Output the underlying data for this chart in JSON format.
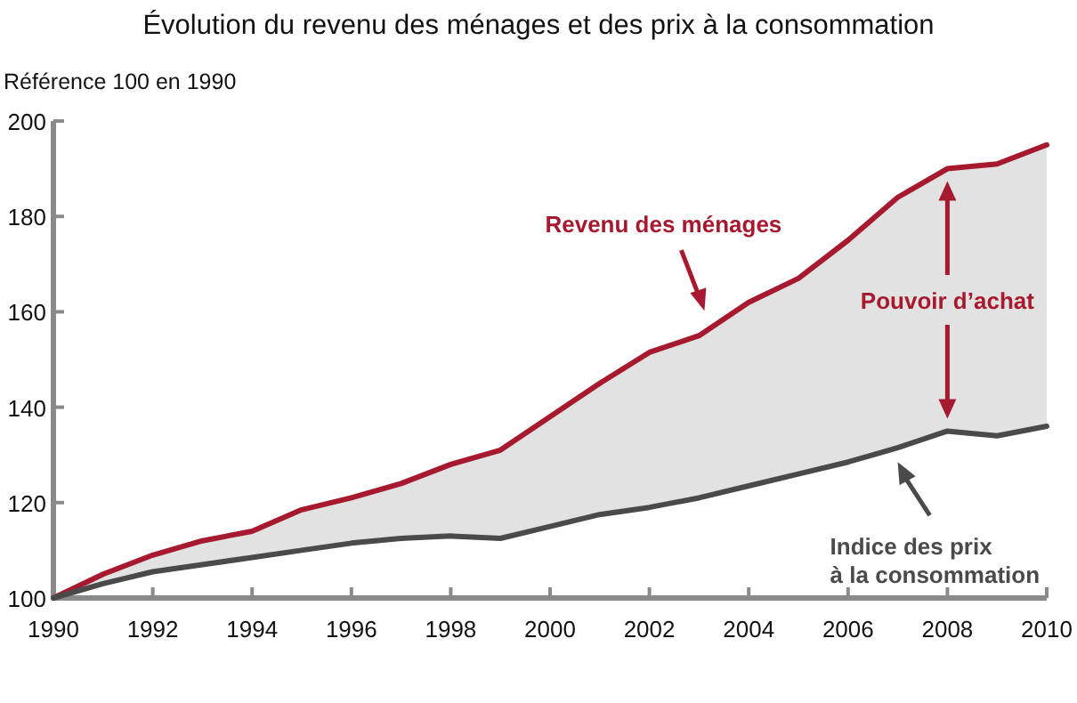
{
  "chart_data": {
    "type": "line",
    "title": "Évolution du revenu des ménages et des prix à la consommation",
    "ylabel": "Référence 100 en 1990",
    "x": [
      1990,
      1991,
      1992,
      1993,
      1994,
      1995,
      1996,
      1997,
      1998,
      1999,
      2000,
      2001,
      2002,
      2003,
      2004,
      2005,
      2006,
      2007,
      2008,
      2009,
      2010
    ],
    "series": [
      {
        "name": "Revenu des ménages",
        "color": "#a6192e",
        "values": [
          100,
          105,
          109,
          112,
          114,
          118.5,
          121,
          124,
          128,
          131,
          138,
          145,
          151.5,
          155,
          162,
          167,
          175,
          184,
          190,
          191,
          195
        ]
      },
      {
        "name": "Indice des prix à la consommation",
        "color": "#4a4a4a",
        "values": [
          100,
          103,
          105.5,
          107,
          108.5,
          110,
          111.5,
          112.5,
          113,
          112.5,
          115,
          117.5,
          119,
          121,
          123.5,
          126,
          128.5,
          131.5,
          135,
          134,
          136
        ]
      }
    ],
    "annotations": [
      "Pouvoir d’achat"
    ],
    "xlim": [
      1990,
      2010
    ],
    "xticks": [
      1990,
      1992,
      1994,
      1996,
      1998,
      2000,
      2002,
      2004,
      2006,
      2008,
      2010
    ],
    "ylim": [
      100,
      200
    ],
    "yticks": [
      100,
      120,
      140,
      160,
      180,
      200
    ],
    "grid": false,
    "line_style": "solid"
  }
}
